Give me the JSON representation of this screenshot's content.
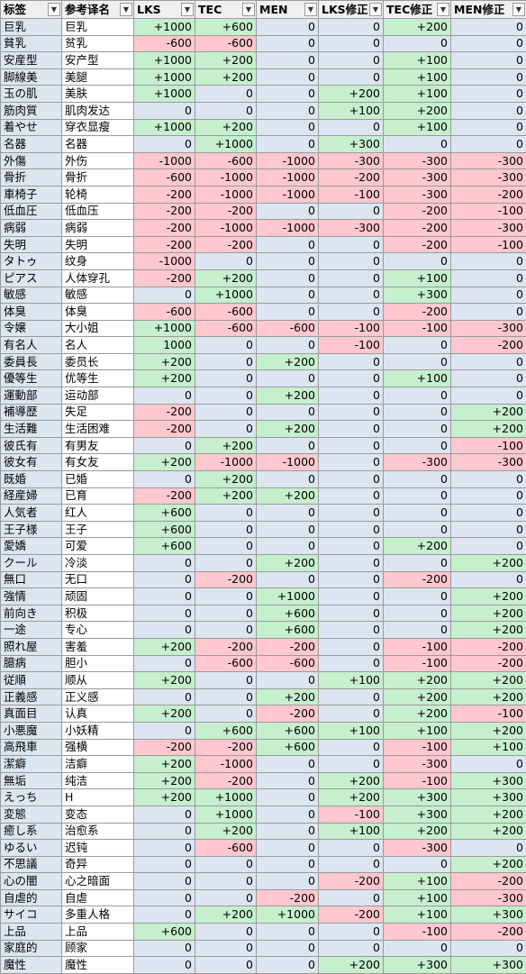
{
  "headers": [
    "标签",
    "参考译名",
    "LKS",
    "TEC",
    "MEN",
    "LKS修正",
    "TEC修正",
    "MEN修正"
  ],
  "colors": {
    "positive": "#c6efce",
    "negative": "#ffc7ce",
    "neutral": "#dce6f1",
    "header": "#f0f0f0"
  },
  "rows": [
    {
      "tag": "巨乳",
      "ref": "巨乳",
      "vals": [
        "+1000",
        "+600",
        "0",
        "0",
        "+200",
        "0"
      ]
    },
    {
      "tag": "貧乳",
      "ref": "贫乳",
      "vals": [
        "-600",
        "-600",
        "0",
        "0",
        "0",
        "0"
      ]
    },
    {
      "tag": "安産型",
      "ref": "安产型",
      "vals": [
        "+1000",
        "+200",
        "0",
        "0",
        "+100",
        "0"
      ]
    },
    {
      "tag": "脚線美",
      "ref": "美腿",
      "vals": [
        "+1000",
        "+200",
        "0",
        "0",
        "+100",
        "0"
      ]
    },
    {
      "tag": "玉の肌",
      "ref": "美肤",
      "vals": [
        "+1000",
        "0",
        "0",
        "+200",
        "+100",
        "0"
      ]
    },
    {
      "tag": "筋肉質",
      "ref": "肌肉发达",
      "vals": [
        "0",
        "0",
        "0",
        "+100",
        "+200",
        "0"
      ]
    },
    {
      "tag": "着やせ",
      "ref": "穿衣显瘦",
      "vals": [
        "+1000",
        "+200",
        "0",
        "0",
        "+100",
        "0"
      ]
    },
    {
      "tag": "名器",
      "ref": "名器",
      "vals": [
        "0",
        "+1000",
        "0",
        "+300",
        "0",
        "0"
      ]
    },
    {
      "tag": "外傷",
      "ref": "外伤",
      "vals": [
        "-1000",
        "-600",
        "-1000",
        "-300",
        "-300",
        "-300"
      ]
    },
    {
      "tag": "骨折",
      "ref": "骨折",
      "vals": [
        "-600",
        "-1000",
        "-1000",
        "-200",
        "-300",
        "-300"
      ]
    },
    {
      "tag": "車椅子",
      "ref": "轮椅",
      "vals": [
        "-200",
        "-1000",
        "-1000",
        "-100",
        "-300",
        "-200"
      ]
    },
    {
      "tag": "低血圧",
      "ref": "低血压",
      "vals": [
        "-200",
        "-200",
        "0",
        "0",
        "-200",
        "-100"
      ]
    },
    {
      "tag": "病弱",
      "ref": "病弱",
      "vals": [
        "-200",
        "-1000",
        "-1000",
        "-300",
        "-200",
        "-300"
      ]
    },
    {
      "tag": "失明",
      "ref": "失明",
      "vals": [
        "-200",
        "-200",
        "0",
        "0",
        "-200",
        "-100"
      ]
    },
    {
      "tag": "タトゥ",
      "ref": "纹身",
      "vals": [
        "-1000",
        "0",
        "0",
        "0",
        "0",
        "0"
      ]
    },
    {
      "tag": "ピアス",
      "ref": "人体穿孔",
      "vals": [
        "-200",
        "+200",
        "0",
        "0",
        "+100",
        "0"
      ]
    },
    {
      "tag": "敏感",
      "ref": "敏感",
      "vals": [
        "0",
        "+1000",
        "0",
        "0",
        "+300",
        "0"
      ]
    },
    {
      "tag": "体臭",
      "ref": "体臭",
      "vals": [
        "-600",
        "-600",
        "0",
        "0",
        "-200",
        "0"
      ]
    },
    {
      "tag": "令嬢",
      "ref": "大小姐",
      "vals": [
        "+1000",
        "-600",
        "-600",
        "-100",
        "-100",
        "-300"
      ]
    },
    {
      "tag": "有名人",
      "ref": "名人",
      "vals": [
        "1000",
        "0",
        "0",
        "-100",
        "0",
        "-200"
      ]
    },
    {
      "tag": "委員長",
      "ref": "委员长",
      "vals": [
        "+200",
        "0",
        "+200",
        "0",
        "0",
        "0"
      ]
    },
    {
      "tag": "優等生",
      "ref": "优等生",
      "vals": [
        "+200",
        "0",
        "0",
        "0",
        "+100",
        "0"
      ]
    },
    {
      "tag": "運動部",
      "ref": "运动部",
      "vals": [
        "0",
        "0",
        "+200",
        "0",
        "0",
        "0"
      ]
    },
    {
      "tag": "補導歴",
      "ref": "失足",
      "vals": [
        "-200",
        "0",
        "0",
        "0",
        "0",
        "+200"
      ]
    },
    {
      "tag": "生活難",
      "ref": "生活困难",
      "vals": [
        "-200",
        "0",
        "+200",
        "0",
        "0",
        "+200"
      ]
    },
    {
      "tag": "彼氏有",
      "ref": "有男友",
      "vals": [
        "0",
        "+200",
        "0",
        "0",
        "0",
        "-100"
      ]
    },
    {
      "tag": "彼女有",
      "ref": "有女友",
      "vals": [
        "+200",
        "-1000",
        "-1000",
        "0",
        "-300",
        "-300"
      ]
    },
    {
      "tag": "既婚",
      "ref": "已婚",
      "vals": [
        "0",
        "+200",
        "0",
        "0",
        "0",
        "0"
      ]
    },
    {
      "tag": "経産婦",
      "ref": "已育",
      "vals": [
        "-200",
        "+200",
        "+200",
        "0",
        "0",
        "0"
      ]
    },
    {
      "tag": "人気者",
      "ref": "红人",
      "vals": [
        "+600",
        "0",
        "0",
        "0",
        "0",
        "0"
      ]
    },
    {
      "tag": "王子様",
      "ref": "王子",
      "vals": [
        "+600",
        "0",
        "0",
        "0",
        "0",
        "0"
      ]
    },
    {
      "tag": "愛嬌",
      "ref": "可爱",
      "vals": [
        "+600",
        "0",
        "0",
        "0",
        "+200",
        "0"
      ]
    },
    {
      "tag": "クール",
      "ref": "冷淡",
      "vals": [
        "0",
        "0",
        "+200",
        "0",
        "0",
        "+200"
      ]
    },
    {
      "tag": "無口",
      "ref": "无口",
      "vals": [
        "0",
        "-200",
        "0",
        "0",
        "-200",
        "0"
      ]
    },
    {
      "tag": "強情",
      "ref": "顽固",
      "vals": [
        "0",
        "0",
        "+1000",
        "0",
        "0",
        "+200"
      ]
    },
    {
      "tag": "前向き",
      "ref": "积极",
      "vals": [
        "0",
        "0",
        "+600",
        "0",
        "0",
        "+200"
      ]
    },
    {
      "tag": "一途",
      "ref": "专心",
      "vals": [
        "0",
        "0",
        "+600",
        "0",
        "0",
        "+200"
      ]
    },
    {
      "tag": "照れ屋",
      "ref": "害羞",
      "vals": [
        "+200",
        "-200",
        "-200",
        "0",
        "-100",
        "-200"
      ]
    },
    {
      "tag": "臆病",
      "ref": "胆小",
      "vals": [
        "0",
        "-600",
        "-600",
        "0",
        "-100",
        "-200"
      ]
    },
    {
      "tag": "従順",
      "ref": "顺从",
      "vals": [
        "+200",
        "0",
        "0",
        "+100",
        "+200",
        "+200"
      ]
    },
    {
      "tag": "正義感",
      "ref": "正义感",
      "vals": [
        "0",
        "0",
        "+200",
        "0",
        "+200",
        "+200"
      ]
    },
    {
      "tag": "真面目",
      "ref": "认真",
      "vals": [
        "+200",
        "0",
        "-200",
        "0",
        "+200",
        "-100"
      ]
    },
    {
      "tag": "小悪魔",
      "ref": "小妖精",
      "vals": [
        "0",
        "+600",
        "+600",
        "+100",
        "+100",
        "+200"
      ]
    },
    {
      "tag": "高飛車",
      "ref": "强横",
      "vals": [
        "-200",
        "-200",
        "+600",
        "0",
        "-100",
        "+100"
      ]
    },
    {
      "tag": "潔癖",
      "ref": "洁癖",
      "vals": [
        "+200",
        "-1000",
        "0",
        "0",
        "-300",
        "0"
      ]
    },
    {
      "tag": "無垢",
      "ref": "纯洁",
      "vals": [
        "+200",
        "-200",
        "0",
        "+200",
        "-100",
        "+300"
      ]
    },
    {
      "tag": "えっち",
      "ref": "H",
      "vals": [
        "+200",
        "+1000",
        "0",
        "+200",
        "+300",
        "+300"
      ]
    },
    {
      "tag": "変態",
      "ref": "变态",
      "vals": [
        "0",
        "+1000",
        "0",
        "-100",
        "+300",
        "+200"
      ]
    },
    {
      "tag": "癒し系",
      "ref": "治愈系",
      "vals": [
        "0",
        "+200",
        "0",
        "+100",
        "+200",
        "+200"
      ]
    },
    {
      "tag": "ゆるい",
      "ref": "迟钝",
      "vals": [
        "0",
        "-600",
        "0",
        "0",
        "-300",
        "0"
      ]
    },
    {
      "tag": "不思議",
      "ref": "奇异",
      "vals": [
        "0",
        "0",
        "0",
        "0",
        "0",
        "+200"
      ]
    },
    {
      "tag": "心の闇",
      "ref": "心之暗面",
      "vals": [
        "0",
        "0",
        "0",
        "-200",
        "+100",
        "-200"
      ]
    },
    {
      "tag": "自虐的",
      "ref": "自虐",
      "vals": [
        "0",
        "0",
        "-200",
        "0",
        "+100",
        "-300"
      ]
    },
    {
      "tag": "サイコ",
      "ref": "多重人格",
      "vals": [
        "0",
        "+200",
        "+1000",
        "-200",
        "+100",
        "+300"
      ]
    },
    {
      "tag": "上品",
      "ref": "上品",
      "vals": [
        "+600",
        "0",
        "0",
        "0",
        "-100",
        "-200"
      ]
    },
    {
      "tag": "家庭的",
      "ref": "顾家",
      "vals": [
        "0",
        "0",
        "0",
        "0",
        "0",
        "0"
      ]
    },
    {
      "tag": "魔性",
      "ref": "魔性",
      "vals": [
        "0",
        "0",
        "0",
        "+200",
        "+300",
        "+300"
      ]
    }
  ]
}
